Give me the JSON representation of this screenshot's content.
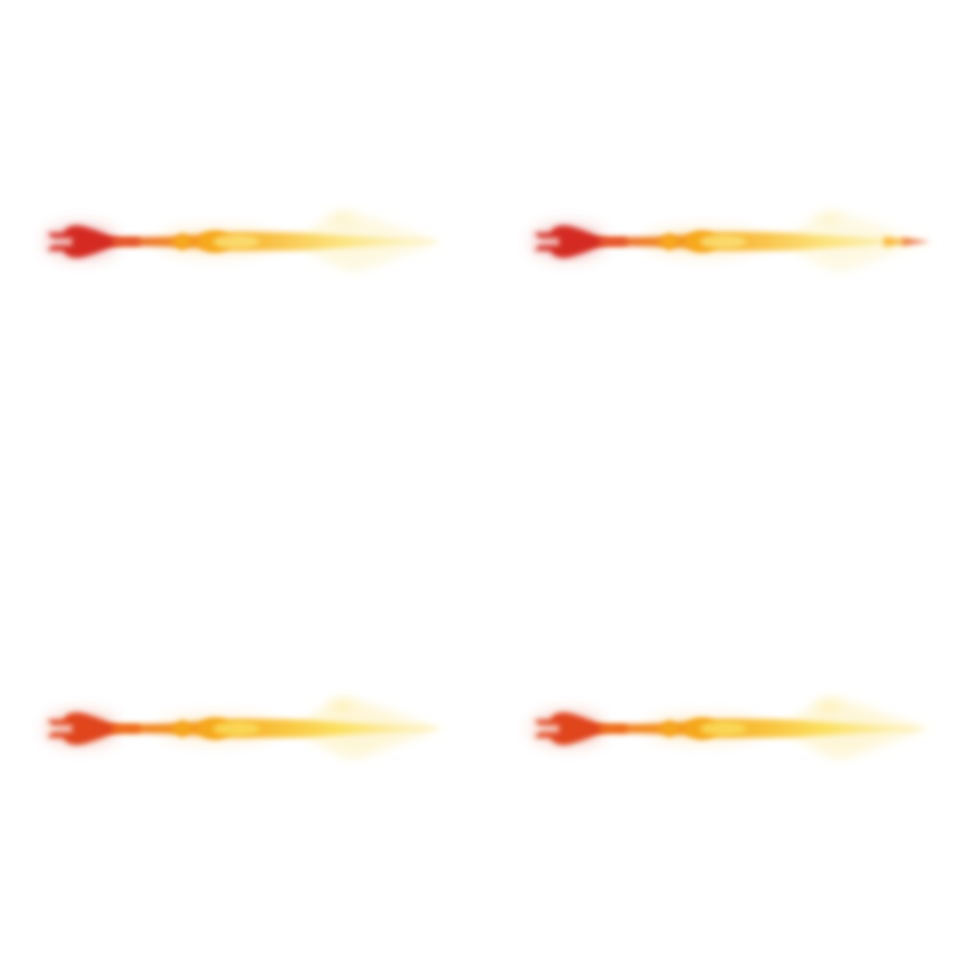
{
  "sprite_sheet": {
    "background": "#ffffff",
    "frames": [
      {
        "index": 0,
        "icon": "flaming-trident-icon",
        "fork_color": "#d42a24",
        "shaft_color": "#e5512a",
        "mid_color": "#f7a81e",
        "hot_color": "#fbe37c",
        "tip_color": "#fdf3c6",
        "wisp_opacity": 0.55,
        "tip_hot": false
      },
      {
        "index": 1,
        "icon": "flaming-trident-icon",
        "fork_color": "#d42a24",
        "shaft_color": "#e5512a",
        "mid_color": "#f7a81e",
        "hot_color": "#fbe37c",
        "tip_color": "#fdf3c6",
        "wisp_opacity": 0.5,
        "tip_hot": true
      },
      {
        "index": 2,
        "icon": "flaming-trident-icon",
        "fork_color": "#e0441f",
        "shaft_color": "#ee6a1e",
        "mid_color": "#f6a71c",
        "hot_color": "#fbe060",
        "tip_color": "#fdf1bd",
        "wisp_opacity": 0.6,
        "tip_hot": false
      },
      {
        "index": 3,
        "icon": "flaming-trident-icon",
        "fork_color": "#e0441f",
        "shaft_color": "#ee6a1e",
        "mid_color": "#f6a71c",
        "hot_color": "#fbe060",
        "tip_color": "#fdf1bd",
        "wisp_opacity": 0.6,
        "tip_hot": false
      }
    ]
  }
}
